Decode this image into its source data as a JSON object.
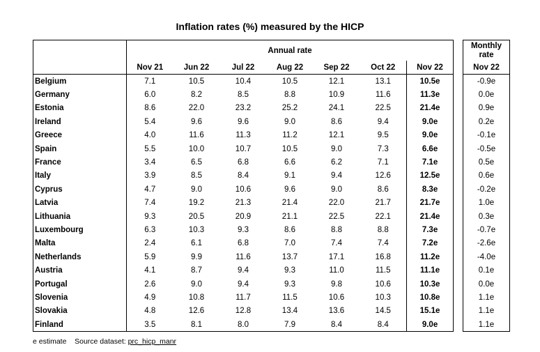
{
  "title": "Inflation rates (%) measured by the HICP",
  "annual_label": "Annual rate",
  "monthly_label_line1": "Monthly",
  "monthly_label_line2": "rate",
  "columns": [
    "Nov 21",
    "Jun 22",
    "Jul 22",
    "Aug 22",
    "Sep 22",
    "Oct 22",
    "Nov 22"
  ],
  "monthly_column": "Nov 22",
  "rows": [
    {
      "country": "Belgium",
      "values": [
        "7.1",
        "10.5",
        "10.4",
        "10.5",
        "12.1",
        "13.1",
        "10.5e"
      ],
      "monthly": "-0.9e"
    },
    {
      "country": "Germany",
      "values": [
        "6.0",
        "8.2",
        "8.5",
        "8.8",
        "10.9",
        "11.6",
        "11.3e"
      ],
      "monthly": "0.0e"
    },
    {
      "country": "Estonia",
      "values": [
        "8.6",
        "22.0",
        "23.2",
        "25.2",
        "24.1",
        "22.5",
        "21.4e"
      ],
      "monthly": "0.9e"
    },
    {
      "country": "Ireland",
      "values": [
        "5.4",
        "9.6",
        "9.6",
        "9.0",
        "8.6",
        "9.4",
        "9.0e"
      ],
      "monthly": "0.2e"
    },
    {
      "country": "Greece",
      "values": [
        "4.0",
        "11.6",
        "11.3",
        "11.2",
        "12.1",
        "9.5",
        "9.0e"
      ],
      "monthly": "-0.1e"
    },
    {
      "country": "Spain",
      "values": [
        "5.5",
        "10.0",
        "10.7",
        "10.5",
        "9.0",
        "7.3",
        "6.6e"
      ],
      "monthly": "-0.5e"
    },
    {
      "country": "France",
      "values": [
        "3.4",
        "6.5",
        "6.8",
        "6.6",
        "6.2",
        "7.1",
        "7.1e"
      ],
      "monthly": "0.5e"
    },
    {
      "country": "Italy",
      "values": [
        "3.9",
        "8.5",
        "8.4",
        "9.1",
        "9.4",
        "12.6",
        "12.5e"
      ],
      "monthly": "0.6e"
    },
    {
      "country": "Cyprus",
      "values": [
        "4.7",
        "9.0",
        "10.6",
        "9.6",
        "9.0",
        "8.6",
        "8.3e"
      ],
      "monthly": "-0.2e"
    },
    {
      "country": "Latvia",
      "values": [
        "7.4",
        "19.2",
        "21.3",
        "21.4",
        "22.0",
        "21.7",
        "21.7e"
      ],
      "monthly": "1.0e"
    },
    {
      "country": "Lithuania",
      "values": [
        "9.3",
        "20.5",
        "20.9",
        "21.1",
        "22.5",
        "22.1",
        "21.4e"
      ],
      "monthly": "0.3e"
    },
    {
      "country": "Luxembourg",
      "values": [
        "6.3",
        "10.3",
        "9.3",
        "8.6",
        "8.8",
        "8.8",
        "7.3e"
      ],
      "monthly": "-0.7e"
    },
    {
      "country": "Malta",
      "values": [
        "2.4",
        "6.1",
        "6.8",
        "7.0",
        "7.4",
        "7.4",
        "7.2e"
      ],
      "monthly": "-2.6e"
    },
    {
      "country": "Netherlands",
      "values": [
        "5.9",
        "9.9",
        "11.6",
        "13.7",
        "17.1",
        "16.8",
        "11.2e"
      ],
      "monthly": "-4.0e"
    },
    {
      "country": "Austria",
      "values": [
        "4.1",
        "8.7",
        "9.4",
        "9.3",
        "11.0",
        "11.5",
        "11.1e"
      ],
      "monthly": "0.1e"
    },
    {
      "country": "Portugal",
      "values": [
        "2.6",
        "9.0",
        "9.4",
        "9.3",
        "9.8",
        "10.6",
        "10.3e"
      ],
      "monthly": "0.0e"
    },
    {
      "country": "Slovenia",
      "values": [
        "4.9",
        "10.8",
        "11.7",
        "11.5",
        "10.6",
        "10.3",
        "10.8e"
      ],
      "monthly": "1.1e"
    },
    {
      "country": "Slovakia",
      "values": [
        "4.8",
        "12.6",
        "12.8",
        "13.4",
        "13.6",
        "14.5",
        "15.1e"
      ],
      "monthly": "1.1e"
    },
    {
      "country": "Finland",
      "values": [
        "3.5",
        "8.1",
        "8.0",
        "7.9",
        "8.4",
        "8.4",
        "9.0e"
      ],
      "monthly": "1.1e"
    }
  ],
  "footnote": {
    "estimate": "e estimate",
    "source_label": "Source dataset:",
    "source_link": "prc_hicp_manr"
  }
}
